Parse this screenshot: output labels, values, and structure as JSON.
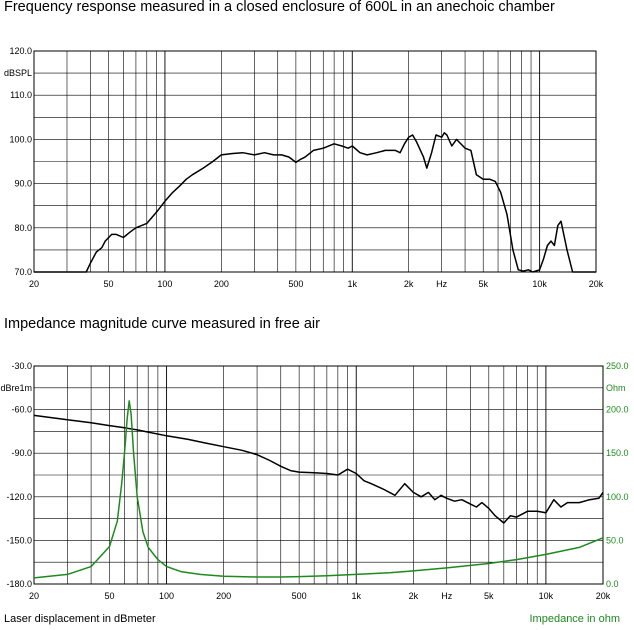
{
  "titles": {
    "top": "Frequency response measured  in a closed enclosure of 600L in an anechoic chamber",
    "bottom": "Impedance  magnitude curve measured in free air"
  },
  "footer": {
    "left": "Laser displacement in dBmeter",
    "right": "Impedance in ohm"
  },
  "colors": {
    "frequency": "#000000",
    "displacement": "#000000",
    "impedance": "#1e8a1e",
    "grid": "#000000"
  },
  "chart_data": [
    {
      "type": "line",
      "title": "Frequency response measured  in a closed enclosure of 600L in an anechoic chamber",
      "ylabel": "dBSPL",
      "xscale": "log",
      "xlim": [
        20,
        20000
      ],
      "ylim": [
        70,
        120
      ],
      "grid": true,
      "x_ticks": [
        {
          "v": 20,
          "label": "20"
        },
        {
          "v": 50,
          "label": "50"
        },
        {
          "v": 100,
          "label": "100"
        },
        {
          "v": 200,
          "label": "200"
        },
        {
          "v": 500,
          "label": "500"
        },
        {
          "v": 1000,
          "label": "1k"
        },
        {
          "v": 2000,
          "label": "2k"
        },
        {
          "v": 3000,
          "label": "Hz"
        },
        {
          "v": 5000,
          "label": "5k"
        },
        {
          "v": 10000,
          "label": "10k"
        },
        {
          "v": 20000,
          "label": "20k"
        }
      ],
      "y_ticks": [
        {
          "v": 120,
          "label": "120.0"
        },
        {
          "v": 110,
          "label": "110.0"
        },
        {
          "v": 100,
          "label": "100.0"
        },
        {
          "v": 90,
          "label": "90.0"
        },
        {
          "v": 80,
          "label": "80.0"
        },
        {
          "v": 70,
          "label": "70.0"
        }
      ],
      "series": [
        {
          "x": [
            20,
            38,
            40,
            43,
            46,
            48,
            52,
            55,
            60,
            65,
            70,
            75,
            80,
            90,
            100,
            110,
            120,
            130,
            140,
            160,
            180,
            200,
            230,
            260,
            300,
            340,
            380,
            420,
            460,
            500,
            530,
            560,
            620,
            700,
            800,
            880,
            950,
            1000,
            1100,
            1200,
            1350,
            1500,
            1700,
            1800,
            1900,
            2000,
            2100,
            2200,
            2400,
            2500,
            2650,
            2800,
            3000,
            3100,
            3200,
            3400,
            3600,
            4000,
            4300,
            4600,
            5000,
            5400,
            5800,
            6200,
            6700,
            7200,
            7700,
            8200,
            8700,
            9200,
            10000,
            10500,
            11000,
            11500,
            12000,
            12500,
            13000,
            14000,
            15000,
            20000
          ],
          "y": [
            70,
            70,
            72,
            74.5,
            75.5,
            77,
            78.5,
            78.5,
            77.8,
            79,
            80,
            80.5,
            81,
            83.5,
            86,
            88,
            89.5,
            91,
            92,
            93.5,
            95,
            96.5,
            96.8,
            97,
            96.5,
            97,
            96.5,
            96.5,
            96,
            94.8,
            95.5,
            96,
            97.5,
            98,
            99,
            98.5,
            98,
            98.5,
            97,
            96.5,
            97,
            97.5,
            97.5,
            97,
            99,
            100.5,
            101,
            99.5,
            96,
            93.5,
            97,
            101,
            100.5,
            101.5,
            101,
            98.5,
            100,
            98,
            97.5,
            92,
            91,
            91,
            90.5,
            88,
            83,
            75,
            70.5,
            70.2,
            70.5,
            70,
            70.5,
            73,
            76,
            77,
            76,
            80.5,
            81.5,
            75,
            70,
            70
          ]
        }
      ]
    },
    {
      "type": "line",
      "title": "Impedance  magnitude curve measured in free air",
      "ylabel": "dBre1m",
      "y2label": "Ohm",
      "xscale": "log",
      "xlim": [
        20,
        20000
      ],
      "ylim": [
        -180,
        -30
      ],
      "y2lim": [
        0,
        250
      ],
      "grid": true,
      "x_ticks": [
        {
          "v": 20,
          "label": "20"
        },
        {
          "v": 50,
          "label": "50"
        },
        {
          "v": 100,
          "label": "100"
        },
        {
          "v": 200,
          "label": "200"
        },
        {
          "v": 500,
          "label": "500"
        },
        {
          "v": 1000,
          "label": "1k"
        },
        {
          "v": 2000,
          "label": "2k"
        },
        {
          "v": 3000,
          "label": "Hz"
        },
        {
          "v": 5000,
          "label": "5k"
        },
        {
          "v": 10000,
          "label": "10k"
        },
        {
          "v": 20000,
          "label": "20k"
        }
      ],
      "y_ticks": [
        {
          "v": -30,
          "label": "-30.0"
        },
        {
          "v": -60,
          "label": "-60.0"
        },
        {
          "v": -90,
          "label": "-90.0"
        },
        {
          "v": -120,
          "label": "-120.0"
        },
        {
          "v": -150,
          "label": "-150.0"
        },
        {
          "v": -180,
          "label": "-180.0"
        }
      ],
      "y2_ticks": [
        {
          "v": 250,
          "label": "250.0"
        },
        {
          "v": 200,
          "label": "200.0"
        },
        {
          "v": 150,
          "label": "150.0"
        },
        {
          "v": 100,
          "label": "100.0"
        },
        {
          "v": 50,
          "label": "50.0"
        },
        {
          "v": 0,
          "label": "0.0"
        }
      ],
      "series": [
        {
          "name": "Laser displacement in dBmeter",
          "axis": "left",
          "x": [
            20,
            30,
            40,
            50,
            60,
            70,
            80,
            100,
            130,
            160,
            200,
            250,
            300,
            350,
            400,
            450,
            500,
            600,
            700,
            800,
            900,
            1000,
            1100,
            1200,
            1400,
            1600,
            1800,
            2000,
            2200,
            2400,
            2600,
            2800,
            3000,
            3300,
            3600,
            4000,
            4300,
            4600,
            5000,
            5400,
            6000,
            6500,
            7000,
            8000,
            9000,
            10000,
            11000,
            12000,
            13000,
            15000,
            17000,
            19000,
            20000
          ],
          "y": [
            -64,
            -67,
            -69,
            -71,
            -72.5,
            -74,
            -75.5,
            -78,
            -80.5,
            -83,
            -85.5,
            -88,
            -91,
            -95,
            -99,
            -102,
            -103,
            -103.5,
            -104,
            -105,
            -101,
            -104,
            -109,
            -111,
            -115,
            -119,
            -111,
            -117,
            -120,
            -117,
            -122,
            -119,
            -121,
            -123,
            -122,
            -125,
            -127,
            -124,
            -128,
            -133,
            -138,
            -133,
            -134,
            -130,
            -130,
            -131,
            -122,
            -127,
            -124,
            -124,
            -122,
            -121,
            -117
          ]
        },
        {
          "name": "Impedance in ohm",
          "axis": "right",
          "x": [
            20,
            30,
            40,
            50,
            55,
            58,
            60,
            62,
            63.5,
            65,
            67,
            70,
            75,
            80,
            90,
            100,
            120,
            150,
            200,
            300,
            400,
            500,
            700,
            1000,
            1500,
            2000,
            3000,
            5000,
            7000,
            10000,
            15000,
            20000
          ],
          "y": [
            7,
            11,
            20,
            43,
            72,
            115,
            150,
            190,
            210,
            195,
            150,
            100,
            60,
            42,
            28,
            20,
            14,
            11,
            9,
            8,
            8,
            8.5,
            9.5,
            11,
            13,
            15,
            18.5,
            23.5,
            28,
            34,
            42,
            53
          ]
        }
      ]
    }
  ]
}
